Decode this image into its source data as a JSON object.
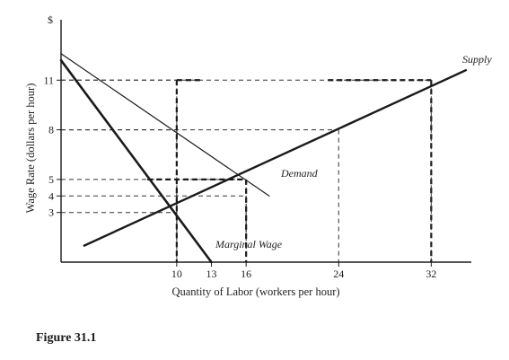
{
  "chart_data": {
    "type": "line",
    "y_unit_label": "$",
    "xlabel": "Quantity of Labor (workers per hour)",
    "ylabel": "Wage Rate (dollars per hour)",
    "xlim": [
      0,
      35
    ],
    "ylim": [
      0,
      14
    ],
    "x_ticks": [
      10,
      13,
      16,
      24,
      32
    ],
    "y_ticks": [
      3,
      4,
      5,
      8,
      11
    ],
    "grid": false,
    "series": [
      {
        "name": "Supply",
        "x": [
          2,
          35
        ],
        "y": [
          1,
          11.6
        ]
      },
      {
        "name": "Demand",
        "x": [
          0,
          18
        ],
        "y": [
          12.6,
          4
        ]
      },
      {
        "name": "Marginal Wage",
        "x": [
          0,
          13
        ],
        "y": [
          12.2,
          0
        ]
      }
    ],
    "reference_lines": [
      {
        "x": 10,
        "y": 11
      },
      {
        "x": 32,
        "y": 11
      },
      {
        "x": 24,
        "y": 8
      },
      {
        "x": 10,
        "y": 8
      },
      {
        "x": 16,
        "y": 5
      },
      {
        "x": 16,
        "y": 4
      },
      {
        "x": 10,
        "y": 3
      }
    ],
    "reference_lines_heavy": [
      {
        "x": 10,
        "y": 11
      },
      {
        "x": 32,
        "y": 11
      },
      {
        "x": 16,
        "y": 5
      }
    ]
  },
  "figure_caption": "Figure 31.1",
  "colors": {
    "line": "#1a1a1a",
    "dashed": "#333333",
    "background": "#ffffff"
  }
}
